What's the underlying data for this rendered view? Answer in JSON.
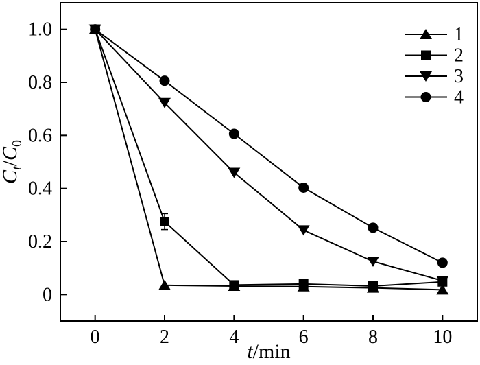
{
  "figure": {
    "background": "#ffffff",
    "line_color": "#000000",
    "frame_color": "#000000"
  },
  "chart_data": {
    "type": "line",
    "title": "",
    "xlabel": "t/min",
    "ylabel": "Ct/C0",
    "xlabel_rich": [
      {
        "t": "t",
        "style": "italic"
      },
      {
        "t": "/min",
        "style": "normal"
      }
    ],
    "ylabel_rich": [
      {
        "t": "C",
        "style": "italic"
      },
      {
        "t": "t",
        "style": "italic-sub"
      },
      {
        "t": "/",
        "style": "normal"
      },
      {
        "t": "C",
        "style": "italic"
      },
      {
        "t": "0",
        "style": "sub"
      }
    ],
    "xlim": [
      -1,
      11
    ],
    "ylim": [
      -0.1,
      1.1
    ],
    "xticks": [
      0,
      2,
      4,
      6,
      8,
      10
    ],
    "xtick_labels": [
      "0",
      "2",
      "4",
      "6",
      "8",
      "10"
    ],
    "yticks": [
      0,
      0.2,
      0.4,
      0.6,
      0.8,
      1.0
    ],
    "ytick_labels": [
      "0",
      "0.2",
      "0.4",
      "0.6",
      "0.8",
      "1.0"
    ],
    "grid": false,
    "legend_position": "top-right",
    "x": [
      0,
      2,
      4,
      6,
      8,
      10
    ],
    "series": [
      {
        "name": "1",
        "marker": "triangle-up",
        "color": "#000000",
        "values": [
          1.0,
          0.035,
          0.032,
          0.03,
          0.025,
          0.018
        ]
      },
      {
        "name": "2",
        "marker": "square",
        "color": "#000000",
        "values": [
          1.0,
          0.275,
          0.036,
          0.04,
          0.032,
          0.048
        ],
        "error": [
          0,
          0.03,
          0,
          0,
          0,
          0
        ]
      },
      {
        "name": "3",
        "marker": "triangle-down",
        "color": "#000000",
        "values": [
          1.0,
          0.723,
          0.46,
          0.243,
          0.125,
          0.052
        ]
      },
      {
        "name": "4",
        "marker": "circle",
        "color": "#000000",
        "values": [
          1.0,
          0.806,
          0.606,
          0.403,
          0.252,
          0.12
        ]
      }
    ]
  }
}
